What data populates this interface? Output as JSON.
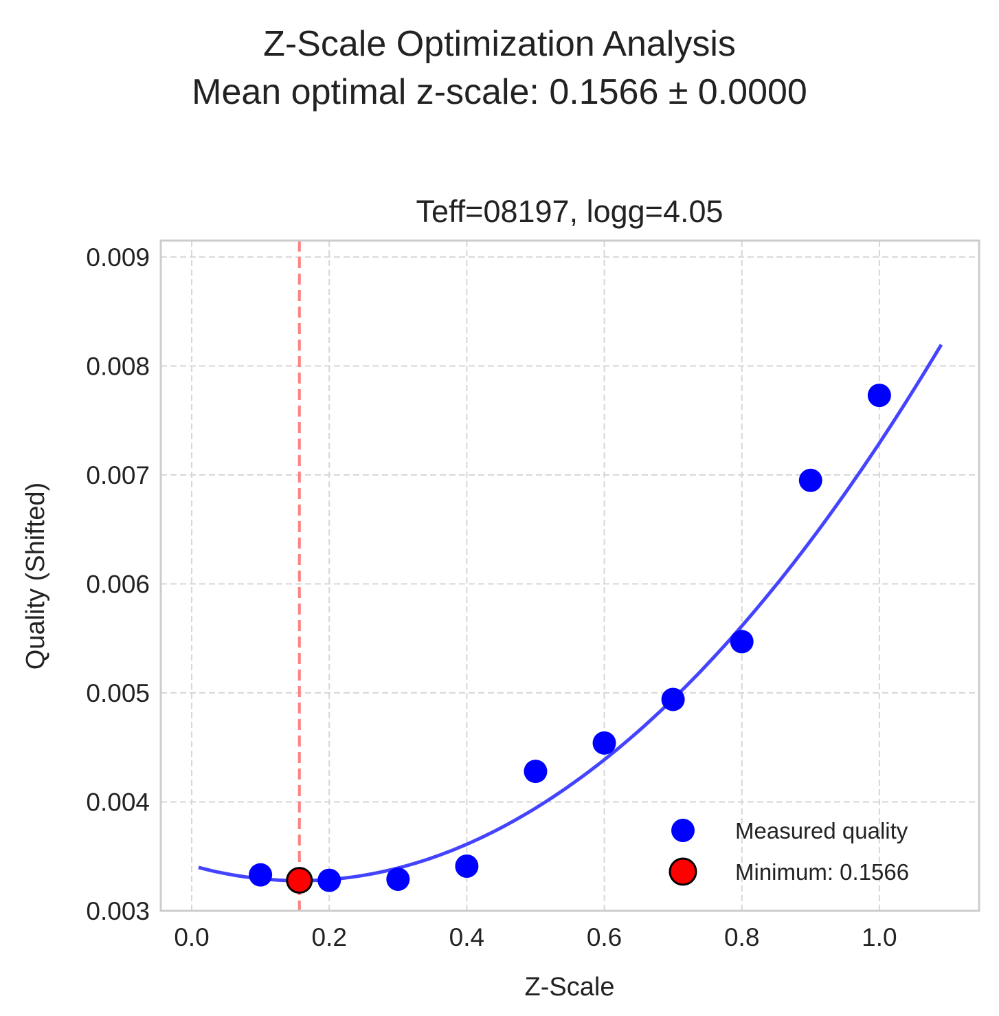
{
  "figure": {
    "suptitle_line1": "Z-Scale Optimization Analysis",
    "suptitle_line2": "Mean optimal z-scale: 0.1566 ± 0.0000"
  },
  "chart_data": {
    "type": "scatter",
    "title": "Teff=08197, logg=4.05",
    "xlabel": "Z-Scale",
    "ylabel": "Quality (Shifted)",
    "xlim": [
      -0.045,
      1.145
    ],
    "ylim": [
      0.003,
      0.00915
    ],
    "xticks": [
      0.0,
      0.2,
      0.4,
      0.6,
      0.8,
      1.0
    ],
    "xtick_labels": [
      "0.0",
      "0.2",
      "0.4",
      "0.6",
      "0.8",
      "1.0"
    ],
    "yticks": [
      0.003,
      0.004,
      0.005,
      0.006,
      0.007,
      0.008,
      0.009
    ],
    "ytick_labels": [
      "0.003",
      "0.004",
      "0.005",
      "0.006",
      "0.007",
      "0.008",
      "0.009"
    ],
    "grid": true,
    "legend_position": "lower right",
    "series": [
      {
        "name": "Measured quality",
        "kind": "scatter",
        "color": "#0000ff",
        "x": [
          0.1,
          0.2,
          0.3,
          0.4,
          0.5,
          0.6,
          0.7,
          0.8,
          0.9,
          1.0
        ],
        "y": [
          0.00333,
          0.00328,
          0.00329,
          0.00341,
          0.00428,
          0.00454,
          0.00494,
          0.00547,
          0.00695,
          0.00773
        ]
      },
      {
        "kind": "line",
        "color": "#4444ff",
        "fit_coefficients": {
          "a": 0.005645,
          "b": -0.001768,
          "c": 0.003415
        },
        "x_range": [
          0.01,
          1.09
        ]
      },
      {
        "name": "Minimum: 0.1566",
        "kind": "scatter",
        "color": "#ff0000",
        "edgecolor": "#000000",
        "x": [
          0.1566
        ],
        "y": [
          0.00328
        ]
      },
      {
        "kind": "vline",
        "color": "#ff8080",
        "linestyle": "dashed",
        "x": 0.1566
      }
    ],
    "legend": [
      {
        "label": "Measured quality",
        "color": "#0000ff"
      },
      {
        "label": "Minimum: 0.1566",
        "color": "#ff0000",
        "edgecolor": "#000000"
      }
    ]
  }
}
